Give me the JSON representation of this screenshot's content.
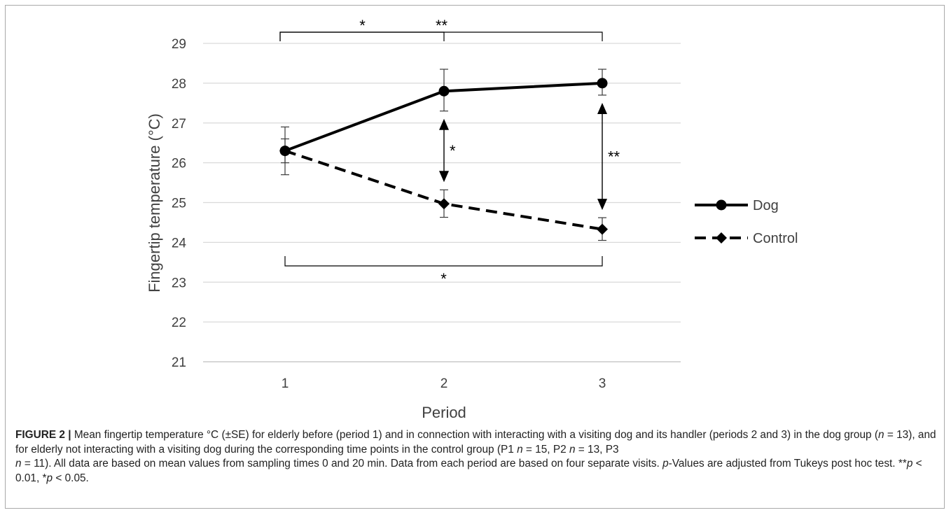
{
  "chart_data": {
    "type": "line",
    "xlabel": "Period",
    "ylabel": "Fingertip temperature (°C)",
    "categories": [
      "1",
      "2",
      "3"
    ],
    "ylim": [
      21,
      29
    ],
    "yticks": [
      "21",
      "22",
      "23",
      "24",
      "25",
      "26",
      "27",
      "28",
      "29"
    ],
    "grid": "horizontal",
    "legend_position": "right",
    "series": [
      {
        "name": "Dog",
        "line_style": "solid",
        "marker": "circle",
        "values": [
          26.3,
          27.8,
          28.0
        ],
        "error_low": [
          25.7,
          27.3,
          27.7
        ],
        "error_high": [
          26.9,
          28.35,
          28.35
        ]
      },
      {
        "name": "Control",
        "line_style": "dashed",
        "marker": "diamond",
        "values": [
          26.3,
          24.97,
          24.33
        ],
        "error_low": [
          26.0,
          24.63,
          24.05
        ],
        "error_high": [
          26.6,
          25.32,
          24.62
        ]
      }
    ],
    "annotations": [
      {
        "type": "bracket",
        "from": "1",
        "to": "3",
        "side": "top",
        "label": "**"
      },
      {
        "type": "bracket",
        "from": "1",
        "to": "2",
        "side": "top",
        "label": "*"
      },
      {
        "type": "bracket",
        "from": "1",
        "to": "3",
        "side": "bottom",
        "label": "*"
      },
      {
        "type": "double-arrow",
        "at": "2",
        "between": [
          "Dog",
          "Control"
        ],
        "label": "*"
      },
      {
        "type": "double-arrow",
        "at": "3",
        "between": [
          "Dog",
          "Control"
        ],
        "label": "**"
      }
    ],
    "colors": {
      "series": "#000000",
      "grid": "#d9d9d9",
      "axis": "#bfbfbf",
      "text": "#404040"
    }
  },
  "caption": {
    "figure_label": "FIGURE 2 |",
    "p1": " Mean fingertip temperature °C (±SE) for elderly before (period 1) and in connection with interacting with a visiting dog and its handler (periods 2 and 3) in the dog group (",
    "n1": "n",
    "p2": " = 13), and for elderly not interacting with a visiting dog during the corresponding time points in the control group (P1 ",
    "n2": "n",
    "p3": " = 15, P2 ",
    "n3": "n",
    "p4": " = 13, P3",
    "n4": "n",
    "p5": " = 11). All data are based on mean values from sampling times 0 and 20 min. Data from each period are based on four separate visits. ",
    "pval": "p",
    "p6": "-Values are adjusted from Tukeys post hoc test. **",
    "pval2": "p",
    "p7": " < 0.01, *",
    "pval3": "p",
    "p8": " < 0.05."
  }
}
